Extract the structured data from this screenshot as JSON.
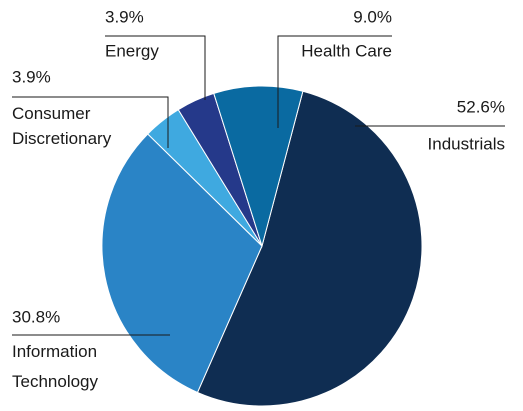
{
  "chart_data": {
    "type": "pie",
    "categories": [
      "Industrials",
      "Information Technology",
      "Consumer Discretionary",
      "Energy",
      "Health Care"
    ],
    "values": [
      52.6,
      30.8,
      3.9,
      3.9,
      9.0
    ],
    "value_labels": [
      "52.6%",
      "30.8%",
      "3.9%",
      "3.9%",
      "9.0%"
    ],
    "colors": [
      "#0f2d52",
      "#2a84c6",
      "#3fa9e0",
      "#25398a",
      "#0a6aa1"
    ]
  }
}
